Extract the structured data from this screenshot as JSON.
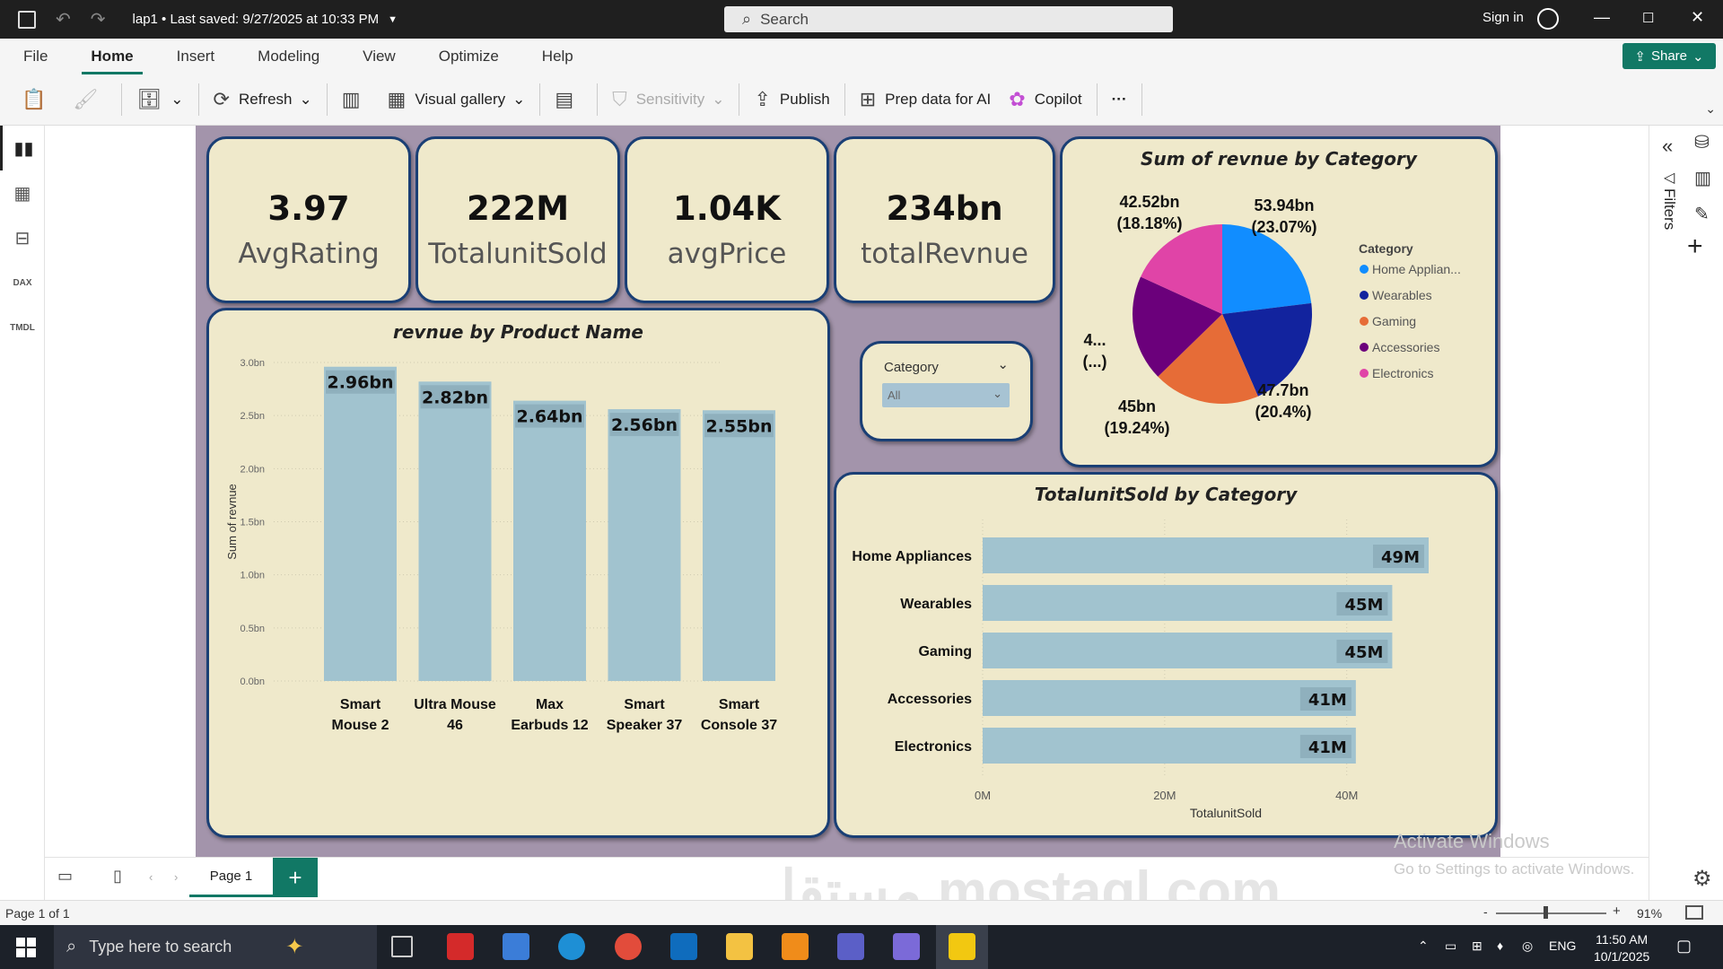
{
  "titlebar": {
    "file_name": "lap1",
    "saved": "Last saved: 9/27/2025 at 10:33 PM",
    "search_placeholder": "Search",
    "sign_in": "Sign in"
  },
  "ribbon": {
    "tabs": [
      "File",
      "Home",
      "Insert",
      "Modeling",
      "View",
      "Optimize",
      "Help"
    ],
    "active_tab": "Home",
    "share": "Share"
  },
  "toolbar": {
    "refresh": "Refresh",
    "visual_gallery": "Visual gallery",
    "sensitivity": "Sensitivity",
    "publish": "Publish",
    "prep_data": "Prep data for AI",
    "copilot": "Copilot",
    "more": "···"
  },
  "right_panel": {
    "filters": "Filters"
  },
  "kpis": [
    {
      "value": "3.97",
      "label": "AvgRating"
    },
    {
      "value": "222M",
      "label": "TotalunitSold"
    },
    {
      "value": "1.04K",
      "label": "avgPrice"
    },
    {
      "value": "234bn",
      "label": "totalRevnue"
    }
  ],
  "slicer": {
    "title": "Category",
    "value": "All"
  },
  "bar_chart_title": "revnue by Product Name",
  "pie_chart_title": "Sum of revnue by Category",
  "hbar_chart_title": "TotalunitSold by Category",
  "chart_data": [
    {
      "type": "bar",
      "title": "revnue by Product Name",
      "ylabel": "Sum of revnue",
      "xlabel": "",
      "categories": [
        "Smart Mouse 2",
        "Ultra Mouse 46",
        "Max Earbuds 12",
        "Smart Speaker 37",
        "Smart Console 37"
      ],
      "category_lines": [
        [
          "Smart",
          "Mouse 2"
        ],
        [
          "Ultra Mouse",
          "46"
        ],
        [
          "Max",
          "Earbuds 12"
        ],
        [
          "Smart",
          "Speaker 37"
        ],
        [
          "Smart",
          "Console 37"
        ]
      ],
      "values": [
        2.96,
        2.82,
        2.64,
        2.56,
        2.55
      ],
      "data_labels": [
        "2.96bn",
        "2.82bn",
        "2.64bn",
        "2.56bn",
        "2.55bn"
      ],
      "yticks": [
        "0.0bn",
        "0.5bn",
        "1.0bn",
        "1.5bn",
        "2.0bn",
        "2.5bn",
        "3.0bn"
      ],
      "ylim": [
        0,
        3.0
      ],
      "color": "#a1c3cf"
    },
    {
      "type": "pie",
      "title": "Sum of revnue by Category",
      "legend_title": "Category",
      "legend_position": "right",
      "slices": [
        {
          "name": "Home Appliances",
          "legend_label": "Home Applian...",
          "value": 53.94,
          "label": "53.94bn",
          "pct": "(23.07%)",
          "color": "#118dff"
        },
        {
          "name": "Wearables",
          "legend_label": "Wearables",
          "value": 47.7,
          "label": "47.7bn",
          "pct": "(20.4%)",
          "color": "#12239e"
        },
        {
          "name": "Gaming",
          "legend_label": "Gaming",
          "value": 45,
          "label": "45bn",
          "pct": "(19.24%)",
          "color": "#e66c37"
        },
        {
          "name": "Accessories",
          "legend_label": "Accessories",
          "value": 44.66,
          "label": "4...",
          "pct": "(...)",
          "color": "#6b007b"
        },
        {
          "name": "Electronics",
          "legend_label": "Electronics",
          "value": 42.52,
          "label": "42.52bn",
          "pct": "(18.18%)",
          "color": "#e044a7"
        }
      ]
    },
    {
      "type": "bar",
      "orientation": "horizontal",
      "title": "TotalunitSold by Category",
      "xlabel": "TotalunitSold",
      "categories": [
        "Home Appliances",
        "Wearables",
        "Gaming",
        "Accessories",
        "Electronics"
      ],
      "values": [
        49,
        45,
        45,
        41,
        41
      ],
      "data_labels": [
        "49M",
        "45M",
        "45M",
        "41M",
        "41M"
      ],
      "xticks": [
        "0M",
        "20M",
        "40M"
      ],
      "xlim": [
        0,
        54
      ],
      "color": "#a1c3cf"
    }
  ],
  "pagebar": {
    "page_tab": "Page 1",
    "add": "+"
  },
  "status": {
    "page": "Page 1 of 1",
    "zoom": "91%"
  },
  "activate": {
    "line1": "Activate Windows",
    "line2": "Go to Settings to activate Windows."
  },
  "watermark": "مستقل mostaql.com",
  "taskbar": {
    "search": "Type here to search",
    "lang": "ENG",
    "time": "11:50 AM",
    "date": "10/1/2025"
  }
}
